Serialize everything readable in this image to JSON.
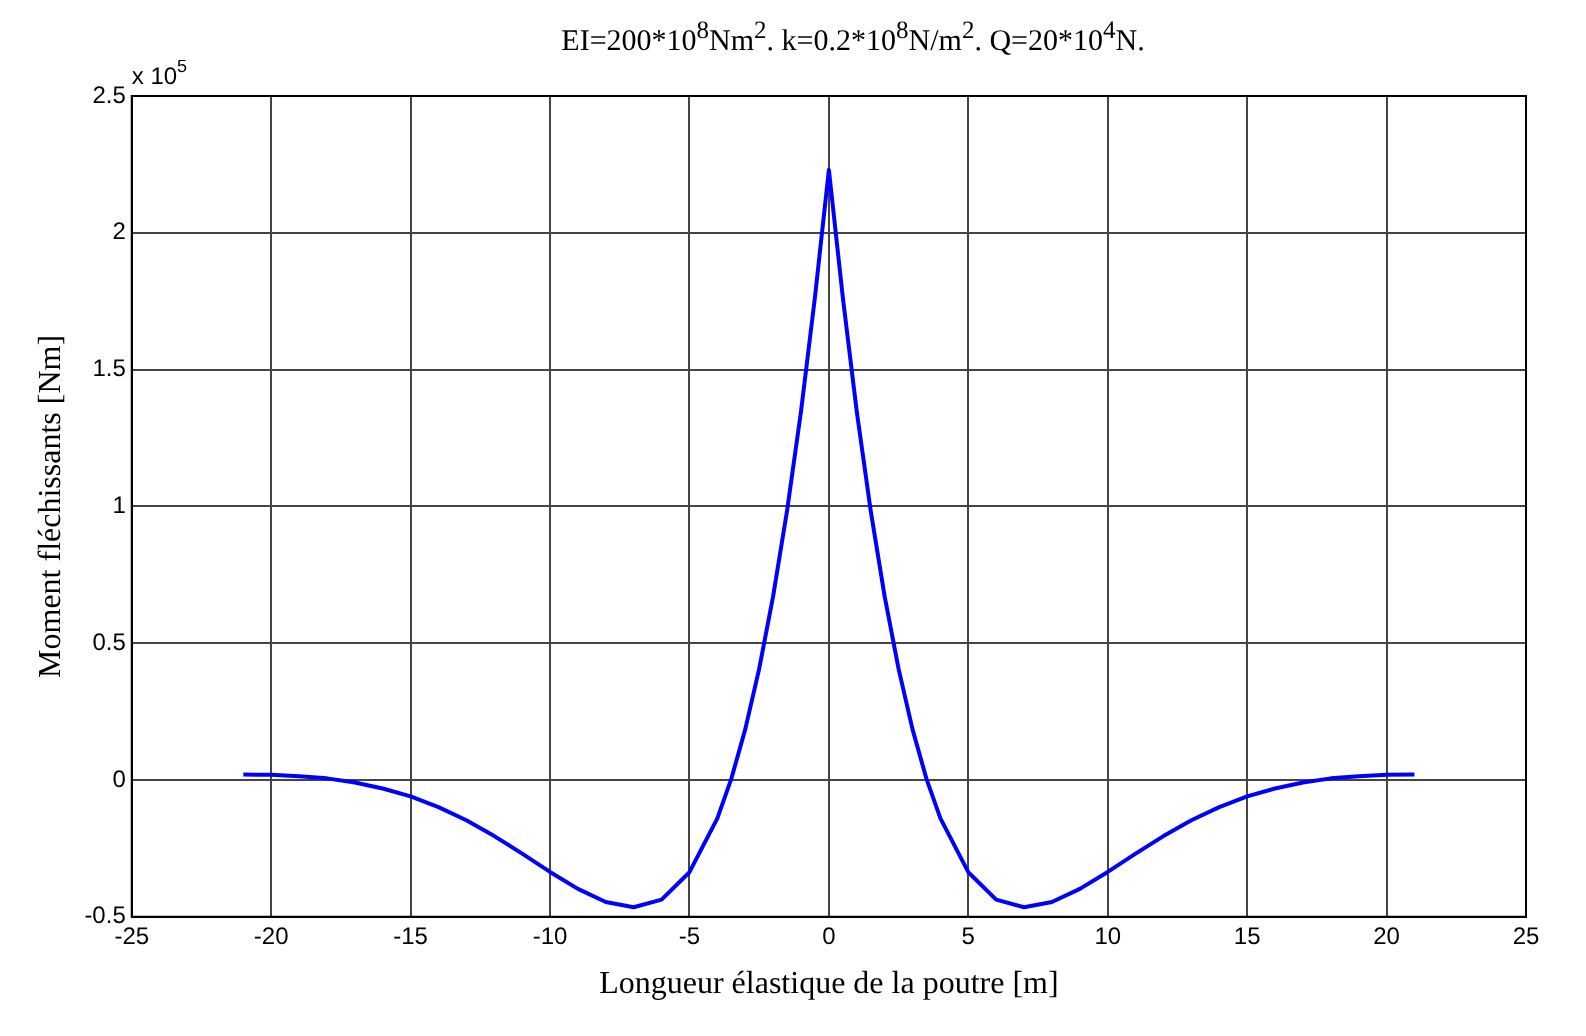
{
  "chart_data": {
    "type": "line",
    "title": "EI=200*10$^{8}$Nm$^{2}$. k=0.2*10$^{8}$N/m$^{2}$. Q=20*10$^{4}$N.",
    "xlabel": "Longueur élastique de la poutre [m]",
    "ylabel": "Moment fléchissants [Nm]",
    "annotations": [
      "x 10$^{5}$"
    ],
    "x": [
      -21,
      -20,
      -19,
      -18,
      -17,
      -16,
      -15,
      -14,
      -13,
      -12,
      -11,
      -10,
      -9,
      -8,
      -7,
      -6,
      -5,
      -4,
      -3.5,
      -3,
      -2.5,
      -2,
      -1.5,
      -1,
      -0.5,
      0,
      0.5,
      1,
      1.5,
      2,
      2.5,
      3,
      3.5,
      4,
      5,
      6,
      7,
      8,
      9,
      10,
      11,
      12,
      13,
      14,
      15,
      16,
      17,
      18,
      19,
      20,
      21
    ],
    "series": [
      {
        "color": "#0000ff",
        "values": [
          0.02,
          0.019,
          0.014,
          0.006,
          -0.009,
          -0.031,
          -0.06,
          -0.099,
          -0.147,
          -0.205,
          -0.269,
          -0.336,
          -0.398,
          -0.446,
          -0.465,
          -0.437,
          -0.337,
          -0.14,
          0.004,
          0.185,
          0.406,
          0.671,
          0.984,
          1.347,
          1.764,
          2.23,
          1.764,
          1.347,
          0.984,
          0.671,
          0.406,
          0.185,
          0.004,
          -0.14,
          -0.337,
          -0.437,
          -0.465,
          -0.446,
          -0.398,
          -0.336,
          -0.269,
          -0.205,
          -0.147,
          -0.099,
          -0.06,
          -0.031,
          -0.009,
          0.006,
          0.014,
          0.019,
          0.02
        ]
      }
    ],
    "xlim": [
      -25,
      25
    ],
    "xticks": [
      -25,
      -20,
      -15,
      -10,
      -5,
      0,
      5,
      10,
      15,
      20,
      25
    ],
    "ylim": [
      -0.5,
      2.5
    ],
    "yticks": [
      -0.5,
      0,
      0.5,
      1,
      1.5,
      2,
      2.5
    ],
    "grid": true,
    "legend": false,
    "marker": "none",
    "line_style": "solid"
  }
}
